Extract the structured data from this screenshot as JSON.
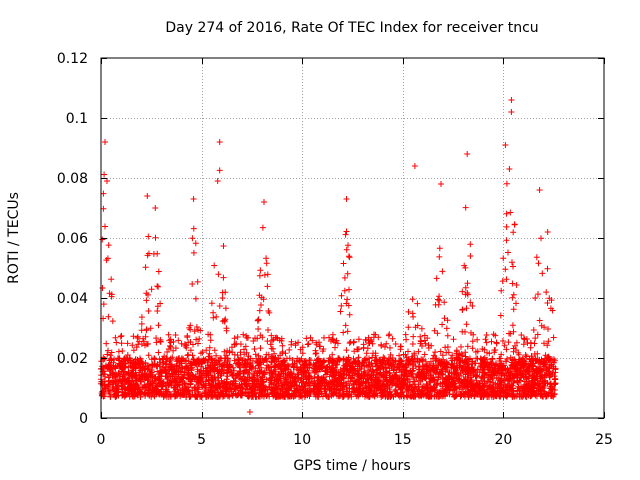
{
  "chart_data": {
    "type": "scatter",
    "title": "Day 274 of 2016, Rate Of TEC Index for receiver tncu",
    "xlabel": "GPS time / hours",
    "ylabel": "ROTI / TECUs",
    "xlim": [
      0,
      25
    ],
    "ylim": [
      0,
      0.12
    ],
    "x_ticks": [
      0,
      5,
      10,
      15,
      20,
      25
    ],
    "x_tick_labels": [
      "0",
      "5",
      "10",
      "15",
      "20",
      "25"
    ],
    "y_ticks": [
      0,
      0.02,
      0.04,
      0.06,
      0.08,
      0.1,
      0.12
    ],
    "y_tick_labels": [
      "0",
      "0.02",
      "0.04",
      "0.06",
      "0.08",
      "0.1",
      "0.12"
    ],
    "grid": true,
    "marker": "+",
    "series": [
      {
        "name": "ROTI",
        "color": "#ff0000",
        "data_range_hours": [
          0,
          22.6
        ],
        "notable_points": [
          {
            "x": 0.2,
            "y": 0.092
          },
          {
            "x": 0.3,
            "y": 0.079
          },
          {
            "x": 2.3,
            "y": 0.074
          },
          {
            "x": 2.7,
            "y": 0.07
          },
          {
            "x": 4.6,
            "y": 0.073
          },
          {
            "x": 5.9,
            "y": 0.092
          },
          {
            "x": 5.8,
            "y": 0.079
          },
          {
            "x": 8.1,
            "y": 0.072
          },
          {
            "x": 12.2,
            "y": 0.073
          },
          {
            "x": 15.6,
            "y": 0.084
          },
          {
            "x": 16.9,
            "y": 0.078
          },
          {
            "x": 18.2,
            "y": 0.088
          },
          {
            "x": 20.1,
            "y": 0.091
          },
          {
            "x": 20.4,
            "y": 0.106
          },
          {
            "x": 20.4,
            "y": 0.102
          },
          {
            "x": 20.3,
            "y": 0.083
          },
          {
            "x": 21.8,
            "y": 0.076
          },
          {
            "x": 22.2,
            "y": 0.062
          },
          {
            "x": 7.4,
            "y": 0.002
          }
        ],
        "baseline_range": [
          0.007,
          0.02
        ]
      }
    ]
  }
}
